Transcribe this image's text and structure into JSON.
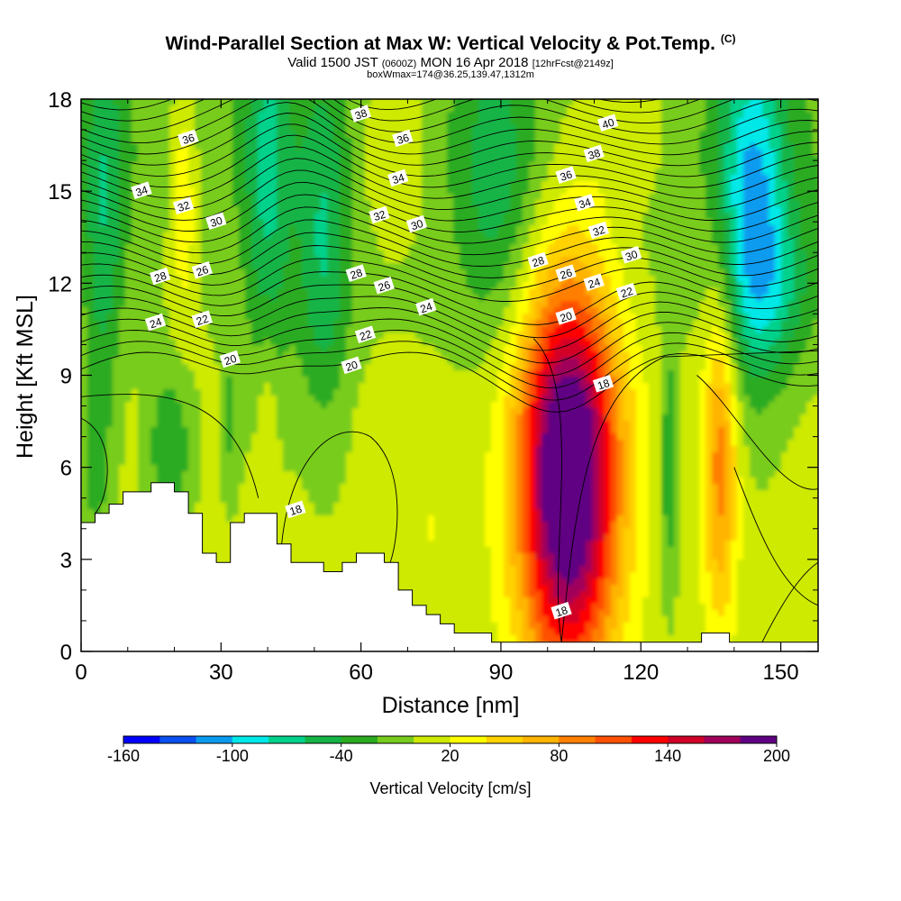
{
  "title": {
    "main": "Wind-Parallel Section at Max W: Vertical Velocity & Pot.Temp.",
    "copyright": "(C)",
    "valid_prefix": "Valid 1500 JST",
    "valid_utc": "(0600Z)",
    "valid_date": "MON 16 Apr 2018",
    "forecast": "[12hrFcst@2149z]",
    "box_info": "boxWmax=174@36.25,139.47,1312m"
  },
  "chart_data": {
    "type": "heatmap",
    "xlabel": "Distance [nm]",
    "ylabel": "Height [Kft MSL]",
    "xlim": [
      0,
      158
    ],
    "ylim": [
      0,
      18
    ],
    "x_ticks": [
      "0",
      "30",
      "60",
      "90",
      "120",
      "150"
    ],
    "y_ticks": [
      "0",
      "3",
      "6",
      "9",
      "12",
      "15",
      "18"
    ],
    "colorbar": {
      "label": "Vertical Velocity [cm/s]",
      "tick_labels": [
        "-160",
        "-100",
        "-40",
        "20",
        "80",
        "140",
        "200"
      ],
      "levels": [
        -160,
        -140,
        -120,
        -100,
        -80,
        -60,
        -40,
        -20,
        0,
        20,
        40,
        60,
        80,
        100,
        120,
        140,
        160,
        180,
        200
      ],
      "colors": [
        "#0000ff",
        "#0a4ff0",
        "#0a9bf0",
        "#00e8e8",
        "#00d28c",
        "#14b446",
        "#2aab20",
        "#78cc1e",
        "#cdea00",
        "#ffff00",
        "#ffd200",
        "#ffb400",
        "#ff8000",
        "#ff5000",
        "#ff0000",
        "#d20028",
        "#a0005a",
        "#600082"
      ]
    },
    "terrain_kft": {
      "x": [
        0,
        3,
        6,
        9,
        15,
        20,
        23,
        26,
        29,
        32,
        35,
        38,
        42,
        45,
        48,
        52,
        56,
        59,
        62,
        65,
        68,
        71,
        74,
        77,
        80,
        84,
        88,
        93,
        98,
        110,
        120,
        130,
        133,
        136,
        139,
        142,
        145,
        150,
        158
      ],
      "y": [
        4.2,
        4.5,
        4.8,
        5.2,
        5.5,
        5.2,
        4.5,
        3.2,
        2.9,
        4.2,
        4.5,
        4.5,
        3.5,
        2.9,
        2.9,
        2.6,
        2.9,
        3.2,
        3.2,
        2.9,
        2.0,
        1.5,
        1.2,
        0.9,
        0.6,
        0.6,
        0.3,
        0.3,
        0.3,
        0.3,
        0.3,
        0.3,
        0.6,
        0.6,
        0.3,
        0.3,
        0.3,
        0.3,
        0.3
      ]
    },
    "updraft_core": {
      "x": 104.5,
      "height_kft": 5.7,
      "max_cms": 174
    },
    "theta_labels": [
      {
        "x": 13,
        "y": 15.0,
        "text": "34"
      },
      {
        "x": 23,
        "y": 16.7,
        "text": "36"
      },
      {
        "x": 22,
        "y": 14.5,
        "text": "32"
      },
      {
        "x": 29,
        "y": 14.0,
        "text": "30"
      },
      {
        "x": 17,
        "y": 12.2,
        "text": "28"
      },
      {
        "x": 26,
        "y": 12.4,
        "text": "26"
      },
      {
        "x": 16,
        "y": 10.7,
        "text": "24"
      },
      {
        "x": 26,
        "y": 10.8,
        "text": "22"
      },
      {
        "x": 32,
        "y": 9.5,
        "text": "20"
      },
      {
        "x": 60,
        "y": 17.5,
        "text": "38"
      },
      {
        "x": 69,
        "y": 16.7,
        "text": "36"
      },
      {
        "x": 68,
        "y": 15.4,
        "text": "34"
      },
      {
        "x": 64,
        "y": 14.2,
        "text": "32"
      },
      {
        "x": 72,
        "y": 13.9,
        "text": "30"
      },
      {
        "x": 59,
        "y": 12.3,
        "text": "28"
      },
      {
        "x": 65,
        "y": 11.9,
        "text": "26"
      },
      {
        "x": 74,
        "y": 11.2,
        "text": "24"
      },
      {
        "x": 61,
        "y": 10.3,
        "text": "22"
      },
      {
        "x": 58,
        "y": 9.3,
        "text": "20"
      },
      {
        "x": 113,
        "y": 17.2,
        "text": "40"
      },
      {
        "x": 110,
        "y": 16.2,
        "text": "38"
      },
      {
        "x": 104,
        "y": 15.5,
        "text": "36"
      },
      {
        "x": 108,
        "y": 14.6,
        "text": "34"
      },
      {
        "x": 111,
        "y": 13.7,
        "text": "32"
      },
      {
        "x": 118,
        "y": 12.9,
        "text": "30"
      },
      {
        "x": 98,
        "y": 12.7,
        "text": "28"
      },
      {
        "x": 104,
        "y": 12.3,
        "text": "26"
      },
      {
        "x": 110,
        "y": 12.0,
        "text": "24"
      },
      {
        "x": 117,
        "y": 11.7,
        "text": "22"
      },
      {
        "x": 104,
        "y": 10.9,
        "text": "20"
      },
      {
        "x": 112,
        "y": 8.7,
        "text": "18"
      },
      {
        "x": 46,
        "y": 4.6,
        "text": "18"
      },
      {
        "x": 103,
        "y": 1.3,
        "text": "18"
      }
    ]
  }
}
